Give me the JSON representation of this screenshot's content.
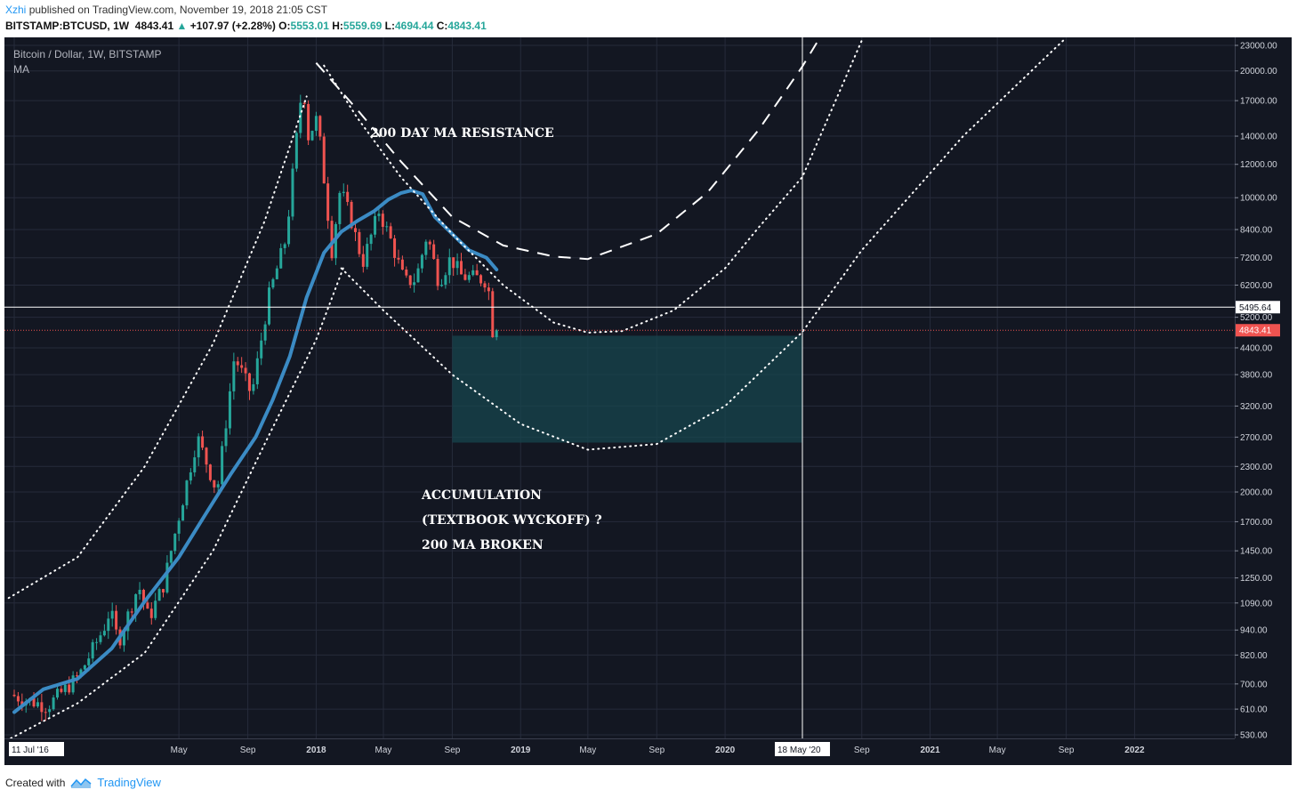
{
  "header": {
    "user": "Xzhi",
    "published_text": "published on TradingView.com, November 19, 2018 21:05 CST"
  },
  "ticker": {
    "symbol": "BITSTAMP:BTCUSD, 1W",
    "price": "4843.41",
    "change": "+107.97 (+2.28%)",
    "o_label": "O:",
    "o": "5553.01",
    "h_label": "H:",
    "h": "5559.69",
    "l_label": "L:",
    "l": "4694.44",
    "c_label": "C:",
    "c": "4843.41",
    "up_arrow": "▲"
  },
  "legend": {
    "line1": "Bitcoin / Dollar, 1W, BITSTAMP",
    "line2": "MA"
  },
  "annotations": {
    "resistance": "200 DAY MA RESISTANCE",
    "accumulation": "ACCUMULATION",
    "wyckoff": "(TEXTBOOK WYCKOFF) ?",
    "broken": "200 MA BROKEN"
  },
  "footer": {
    "created_with": "Created with",
    "brand": "TradingView"
  },
  "colors": {
    "background": "#131722",
    "grid": "#262b3b",
    "up_candle": "#26a69a",
    "down_candle": "#ef5350",
    "ma_line": "#3b8bc4",
    "zone": "#17464d",
    "price_line": "#ef5350"
  },
  "chart_data": {
    "type": "candlestick",
    "title": "Bitcoin / Dollar, 1W, BITSTAMP",
    "y_scale": "log",
    "ylim": [
      490,
      24500
    ],
    "y_ticks": [
      23000,
      20000,
      17000,
      14000,
      12000,
      10000,
      8400,
      7200,
      6200,
      5200,
      4400,
      3800,
      3200,
      2700,
      2300,
      2000,
      1700,
      1450,
      1250,
      1090,
      940,
      820,
      700,
      610,
      530
    ],
    "y_tick_labels": [
      "23000.00",
      "20000.00",
      "17000.00",
      "14000.00",
      "12000.00",
      "10000.00",
      "8400.00",
      "7200.00",
      "6200.00",
      "5200.00",
      "4400.00",
      "3800.00",
      "3200.00",
      "2700.00",
      "2300.00",
      "2000.00",
      "1700.00",
      "1450.00",
      "1250.00",
      "1090.00",
      "940.00",
      "820.00",
      "700.00",
      "610.00",
      "530.00"
    ],
    "x_ticks": [
      {
        "date": "2016-07-11",
        "label": "11 Jul '16",
        "boxed": true
      },
      {
        "date": "2017-05-01",
        "label": "May"
      },
      {
        "date": "2017-09-01",
        "label": "Sep"
      },
      {
        "date": "2018-01-01",
        "label": "2018"
      },
      {
        "date": "2018-05-01",
        "label": "May"
      },
      {
        "date": "2018-09-01",
        "label": "Sep"
      },
      {
        "date": "2019-01-01",
        "label": "2019"
      },
      {
        "date": "2019-05-01",
        "label": "May"
      },
      {
        "date": "2019-09-01",
        "label": "Sep"
      },
      {
        "date": "2020-01-01",
        "label": "2020"
      },
      {
        "date": "2020-05-18",
        "label": "18 May '20",
        "boxed": true
      },
      {
        "date": "2020-09-01",
        "label": "Sep"
      },
      {
        "date": "2021-01-01",
        "label": "2021"
      },
      {
        "date": "2021-05-01",
        "label": "May"
      },
      {
        "date": "2021-09-01",
        "label": "Sep"
      },
      {
        "date": "2022-01-01",
        "label": "2022"
      }
    ],
    "price_tags": [
      {
        "value": 5495.64,
        "label": "5495.64",
        "style": "crosshair"
      },
      {
        "value": 4843.41,
        "label": "4843.41",
        "style": "last"
      }
    ],
    "crosshair": {
      "date": "2020-05-18",
      "value": 5495.64
    },
    "accumulation_zone": {
      "date_start": "2018-09-01",
      "date_end": "2020-05-18",
      "price_low": 2620,
      "price_high": 4700
    },
    "series": [
      {
        "kind": "ma",
        "points": [
          [
            "2016-07-11",
            600
          ],
          [
            "2016-09-01",
            680
          ],
          [
            "2016-11-01",
            720
          ],
          [
            "2017-01-01",
            850
          ],
          [
            "2017-03-01",
            1100
          ],
          [
            "2017-05-01",
            1400
          ],
          [
            "2017-06-15",
            1750
          ],
          [
            "2017-08-01",
            2200
          ],
          [
            "2017-09-15",
            2700
          ],
          [
            "2017-10-15",
            3300
          ],
          [
            "2017-11-15",
            4200
          ],
          [
            "2017-12-15",
            5800
          ],
          [
            "2018-01-15",
            7400
          ],
          [
            "2018-02-15",
            8300
          ],
          [
            "2018-03-15",
            8800
          ],
          [
            "2018-04-15",
            9300
          ],
          [
            "2018-05-10",
            9900
          ],
          [
            "2018-06-01",
            10250
          ],
          [
            "2018-06-20",
            10400
          ],
          [
            "2018-07-10",
            10200
          ],
          [
            "2018-08-01",
            9000
          ],
          [
            "2018-09-01",
            8200
          ],
          [
            "2018-10-01",
            7500
          ],
          [
            "2018-11-01",
            7200
          ],
          [
            "2018-11-19",
            6750
          ]
        ]
      },
      {
        "kind": "curve-dashed",
        "points": [
          [
            "2018-01-01",
            20900
          ],
          [
            "2018-03-15",
            16200
          ],
          [
            "2018-06-01",
            12200
          ],
          [
            "2018-09-01",
            9000
          ],
          [
            "2018-12-01",
            7700
          ],
          [
            "2019-03-01",
            7250
          ],
          [
            "2019-05-01",
            7150
          ],
          [
            "2019-09-01",
            8200
          ],
          [
            "2019-12-01",
            10300
          ],
          [
            "2020-03-01",
            14500
          ],
          [
            "2020-05-18",
            20500
          ],
          [
            "2020-06-15",
            23600
          ]
        ]
      },
      {
        "kind": "curve-dotted",
        "points": [
          [
            "2018-01-15",
            20600
          ],
          [
            "2018-03-15",
            15500
          ],
          [
            "2018-06-01",
            11200
          ],
          [
            "2018-09-01",
            8200
          ],
          [
            "2018-12-01",
            6200
          ],
          [
            "2019-03-01",
            5050
          ],
          [
            "2019-05-01",
            4780
          ],
          [
            "2019-07-01",
            4820
          ],
          [
            "2019-10-01",
            5400
          ],
          [
            "2020-01-01",
            6800
          ],
          [
            "2020-03-01",
            8500
          ],
          [
            "2020-05-18",
            11200
          ],
          [
            "2020-09-01",
            23600
          ]
        ]
      },
      {
        "kind": "curve-dotted",
        "points": [
          [
            "2018-02-15",
            6800
          ],
          [
            "2018-05-01",
            5400
          ],
          [
            "2018-09-01",
            3800
          ],
          [
            "2019-01-01",
            2900
          ],
          [
            "2019-05-01",
            2520
          ],
          [
            "2019-09-01",
            2600
          ],
          [
            "2020-01-01",
            3200
          ],
          [
            "2020-05-18",
            4800
          ],
          [
            "2020-09-01",
            7500
          ],
          [
            "2021-03-01",
            14000
          ],
          [
            "2021-09-01",
            24000
          ]
        ]
      },
      {
        "kind": "curve-dotted",
        "points": [
          [
            "2016-07-01",
            1120
          ],
          [
            "2016-11-01",
            1400
          ],
          [
            "2017-03-01",
            2300
          ],
          [
            "2017-07-01",
            4500
          ],
          [
            "2017-10-01",
            8800
          ],
          [
            "2017-12-15",
            17400
          ]
        ]
      },
      {
        "kind": "curve-dotted",
        "points": [
          [
            "2016-07-05",
            520
          ],
          [
            "2016-11-01",
            630
          ],
          [
            "2017-03-01",
            830
          ],
          [
            "2017-07-01",
            1450
          ],
          [
            "2017-10-01",
            2600
          ],
          [
            "2018-01-01",
            4600
          ],
          [
            "2018-02-20",
            6900
          ]
        ]
      }
    ]
  }
}
